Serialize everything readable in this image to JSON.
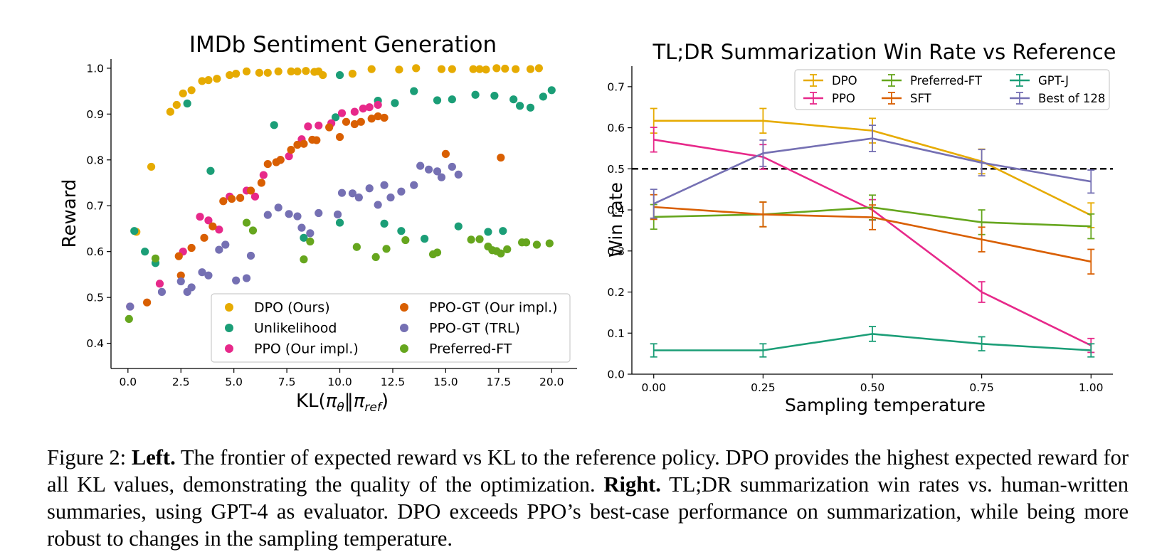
{
  "figure": {
    "caption_prefix": "Figure 2:",
    "left_bold": "Left.",
    "left_text": "The frontier of expected reward vs KL to the reference policy. DPO provides the highest expected reward for all KL values, demonstrating the quality of the optimization.",
    "right_bold": "Right.",
    "right_text": "TL;DR summarization win rates vs. human-written summaries, using GPT-4 as evaluator. DPO exceeds PPO’s best-case performance on summarization, while being more robust to changes in the sampling temperature."
  },
  "chart_data": [
    {
      "type": "scatter",
      "title": "IMDb Sentiment Generation",
      "xlabel": "KL(π_θ‖π_ref)",
      "ylabel": "Reward",
      "xlim": [
        -0.8,
        21.2
      ],
      "ylim": [
        0.345,
        1.02
      ],
      "xticks": [
        0.0,
        2.5,
        5.0,
        7.5,
        10.0,
        12.5,
        15.0,
        17.5,
        20.0
      ],
      "xtick_labels": [
        "0.0",
        "2.5",
        "5.0",
        "7.5",
        "10.0",
        "12.5",
        "15.0",
        "17.5",
        "20.0"
      ],
      "yticks": [
        0.4,
        0.5,
        0.6,
        0.7,
        0.8,
        0.9,
        1.0
      ],
      "ytick_labels": [
        "0.4",
        "0.5",
        "0.6",
        "0.7",
        "0.8",
        "0.9",
        "1.0"
      ],
      "grid": false,
      "legend": "lower-right",
      "series": [
        {
          "name": "DPO (Ours)",
          "color": "#E6AB02",
          "points": [
            [
              0.4,
              0.643
            ],
            [
              1.1,
              0.785
            ],
            [
              2.0,
              0.905
            ],
            [
              2.3,
              0.92
            ],
            [
              2.6,
              0.945
            ],
            [
              3.0,
              0.952
            ],
            [
              3.5,
              0.972
            ],
            [
              3.8,
              0.974
            ],
            [
              4.2,
              0.977
            ],
            [
              4.8,
              0.985
            ],
            [
              5.1,
              0.988
            ],
            [
              5.6,
              0.993
            ],
            [
              6.2,
              0.99
            ],
            [
              6.6,
              0.99
            ],
            [
              7.1,
              0.993
            ],
            [
              7.7,
              0.993
            ],
            [
              8.0,
              0.993
            ],
            [
              8.4,
              0.994
            ],
            [
              8.8,
              0.992
            ],
            [
              9.0,
              0.993
            ],
            [
              9.2,
              0.985
            ],
            [
              10.6,
              0.988
            ],
            [
              11.5,
              0.998
            ],
            [
              12.8,
              0.997
            ],
            [
              13.6,
              1.0
            ],
            [
              14.8,
              0.998
            ],
            [
              15.3,
              0.998
            ],
            [
              16.3,
              0.998
            ],
            [
              16.6,
              0.998
            ],
            [
              16.9,
              0.997
            ],
            [
              17.4,
              1.0
            ],
            [
              17.8,
              0.999
            ],
            [
              18.3,
              0.998
            ],
            [
              19.0,
              0.998
            ],
            [
              19.4,
              1.0
            ]
          ]
        },
        {
          "name": "Unlikelihood",
          "color": "#1B9E77",
          "points": [
            [
              0.3,
              0.645
            ],
            [
              0.8,
              0.6
            ],
            [
              1.3,
              0.575
            ],
            [
              2.8,
              0.923
            ],
            [
              3.9,
              0.776
            ],
            [
              6.9,
              0.876
            ],
            [
              8.3,
              0.63
            ],
            [
              9.8,
              0.893
            ],
            [
              10.0,
              0.985
            ],
            [
              10.0,
              0.663
            ],
            [
              11.8,
              0.929
            ],
            [
              12.1,
              0.661
            ],
            [
              12.6,
              0.924
            ],
            [
              12.9,
              0.645
            ],
            [
              13.5,
              0.95
            ],
            [
              14.0,
              0.628
            ],
            [
              14.6,
              0.93
            ],
            [
              15.3,
              0.932
            ],
            [
              15.6,
              0.655
            ],
            [
              16.4,
              0.942
            ],
            [
              17.0,
              0.643
            ],
            [
              17.3,
              0.94
            ],
            [
              17.7,
              0.645
            ],
            [
              18.2,
              0.932
            ],
            [
              18.5,
              0.918
            ],
            [
              19.0,
              0.914
            ],
            [
              19.6,
              0.938
            ],
            [
              20.0,
              0.952
            ]
          ]
        },
        {
          "name": "PPO (Our impl.)",
          "color": "#E7298A",
          "points": [
            [
              0.1,
              0.48
            ],
            [
              1.5,
              0.53
            ],
            [
              2.6,
              0.6
            ],
            [
              3.4,
              0.676
            ],
            [
              3.8,
              0.668
            ],
            [
              4.3,
              0.648
            ],
            [
              4.8,
              0.72
            ],
            [
              5.6,
              0.733
            ],
            [
              6.0,
              0.72
            ],
            [
              6.4,
              0.767
            ],
            [
              7.2,
              0.8
            ],
            [
              7.6,
              0.808
            ],
            [
              8.2,
              0.845
            ],
            [
              8.5,
              0.873
            ],
            [
              9.0,
              0.875
            ],
            [
              9.6,
              0.88
            ],
            [
              10.1,
              0.902
            ],
            [
              10.7,
              0.905
            ],
            [
              11.1,
              0.912
            ],
            [
              11.4,
              0.915
            ],
            [
              11.8,
              0.92
            ]
          ]
        },
        {
          "name": "PPO-GT (Our impl.)",
          "color": "#D95F02",
          "points": [
            [
              0.9,
              0.489
            ],
            [
              2.5,
              0.548
            ],
            [
              2.4,
              0.59
            ],
            [
              3.0,
              0.608
            ],
            [
              3.6,
              0.63
            ],
            [
              4.0,
              0.655
            ],
            [
              4.5,
              0.71
            ],
            [
              4.9,
              0.715
            ],
            [
              5.3,
              0.717
            ],
            [
              5.8,
              0.733
            ],
            [
              6.3,
              0.75
            ],
            [
              6.6,
              0.791
            ],
            [
              7.0,
              0.795
            ],
            [
              7.2,
              0.8
            ],
            [
              7.7,
              0.822
            ],
            [
              8.0,
              0.833
            ],
            [
              8.3,
              0.835
            ],
            [
              8.7,
              0.844
            ],
            [
              8.9,
              0.843
            ],
            [
              9.5,
              0.871
            ],
            [
              10.0,
              0.85
            ],
            [
              10.3,
              0.883
            ],
            [
              10.7,
              0.878
            ],
            [
              11.0,
              0.883
            ],
            [
              11.5,
              0.89
            ],
            [
              11.8,
              0.895
            ],
            [
              12.1,
              0.892
            ],
            [
              15.0,
              0.813
            ],
            [
              17.6,
              0.805
            ]
          ]
        },
        {
          "name": "PPO-GT (TRL)",
          "color": "#7570B3",
          "points": [
            [
              0.1,
              0.48
            ],
            [
              1.6,
              0.512
            ],
            [
              2.5,
              0.535
            ],
            [
              2.8,
              0.512
            ],
            [
              3.0,
              0.522
            ],
            [
              3.5,
              0.555
            ],
            [
              3.8,
              0.548
            ],
            [
              4.3,
              0.604
            ],
            [
              4.6,
              0.615
            ],
            [
              5.1,
              0.537
            ],
            [
              5.6,
              0.542
            ],
            [
              5.8,
              0.591
            ],
            [
              6.6,
              0.68
            ],
            [
              7.1,
              0.696
            ],
            [
              7.6,
              0.682
            ],
            [
              8.0,
              0.677
            ],
            [
              8.2,
              0.652
            ],
            [
              8.6,
              0.64
            ],
            [
              9.0,
              0.684
            ],
            [
              9.9,
              0.681
            ],
            [
              10.1,
              0.728
            ],
            [
              10.6,
              0.727
            ],
            [
              10.9,
              0.718
            ],
            [
              11.4,
              0.738
            ],
            [
              11.8,
              0.702
            ],
            [
              12.1,
              0.745
            ],
            [
              12.4,
              0.718
            ],
            [
              12.9,
              0.731
            ],
            [
              13.5,
              0.745
            ],
            [
              13.8,
              0.787
            ],
            [
              14.2,
              0.779
            ],
            [
              14.6,
              0.775
            ],
            [
              14.8,
              0.762
            ],
            [
              15.3,
              0.785
            ],
            [
              15.6,
              0.768
            ]
          ]
        },
        {
          "name": "Preferred-FT",
          "color": "#66A61E",
          "points": [
            [
              0.05,
              0.453
            ],
            [
              1.3,
              0.585
            ],
            [
              5.6,
              0.663
            ],
            [
              5.9,
              0.646
            ],
            [
              8.3,
              0.583
            ],
            [
              8.6,
              0.622
            ],
            [
              10.8,
              0.61
            ],
            [
              11.7,
              0.588
            ],
            [
              12.2,
              0.606
            ],
            [
              13.1,
              0.625
            ],
            [
              14.4,
              0.594
            ],
            [
              14.6,
              0.598
            ],
            [
              16.2,
              0.626
            ],
            [
              16.6,
              0.627
            ],
            [
              17.0,
              0.611
            ],
            [
              17.2,
              0.603
            ],
            [
              17.4,
              0.601
            ],
            [
              17.6,
              0.596
            ],
            [
              17.9,
              0.605
            ],
            [
              18.6,
              0.62
            ],
            [
              18.8,
              0.62
            ],
            [
              19.3,
              0.615
            ],
            [
              19.9,
              0.618
            ]
          ]
        }
      ]
    },
    {
      "type": "line",
      "title": "TL;DR Summarization Win Rate vs Reference",
      "xlabel": "Sampling temperature",
      "ylabel": "Win rate",
      "x": [
        0.0,
        0.25,
        0.5,
        0.75,
        1.0
      ],
      "xlim": [
        -0.05,
        1.05
      ],
      "ylim": [
        0.0,
        0.75
      ],
      "xticks": [
        0.0,
        0.25,
        0.5,
        0.75,
        1.0
      ],
      "xtick_labels": [
        "0.00",
        "0.25",
        "0.50",
        "0.75",
        "1.00"
      ],
      "yticks": [
        0.0,
        0.1,
        0.2,
        0.3,
        0.4,
        0.5,
        0.6,
        0.7
      ],
      "ytick_labels": [
        "0.0",
        "0.1",
        "0.2",
        "0.3",
        "0.4",
        "0.5",
        "0.6",
        "0.7"
      ],
      "reference_line": 0.5,
      "grid": false,
      "legend": "upper-right",
      "series": [
        {
          "name": "DPO",
          "color": "#E6AB02",
          "values": [
            0.617,
            0.617,
            0.593,
            0.518,
            0.387
          ],
          "errors": [
            0.03,
            0.03,
            0.03,
            0.03,
            0.03
          ]
        },
        {
          "name": "PPO",
          "color": "#E7298A",
          "values": [
            0.571,
            0.529,
            0.4,
            0.2,
            0.07
          ],
          "errors": [
            0.03,
            0.03,
            0.025,
            0.025,
            0.017
          ]
        },
        {
          "name": "Preferred-FT",
          "color": "#66A61E",
          "values": [
            0.383,
            0.389,
            0.406,
            0.37,
            0.36
          ],
          "errors": [
            0.03,
            0.03,
            0.03,
            0.03,
            0.03
          ]
        },
        {
          "name": "SFT",
          "color": "#D95F02",
          "values": [
            0.407,
            0.389,
            0.382,
            0.328,
            0.274
          ],
          "errors": [
            0.03,
            0.03,
            0.03,
            0.03,
            0.03
          ]
        },
        {
          "name": "GPT-J",
          "color": "#1B9E77",
          "values": [
            0.058,
            0.058,
            0.098,
            0.074,
            0.058
          ],
          "errors": [
            0.016,
            0.016,
            0.018,
            0.017,
            0.016
          ]
        },
        {
          "name": "Best of 128",
          "color": "#7570B3",
          "values": [
            0.415,
            0.538,
            0.574,
            0.515,
            0.469
          ],
          "errors": [
            0.035,
            0.032,
            0.032,
            0.032,
            0.028
          ]
        }
      ]
    }
  ]
}
